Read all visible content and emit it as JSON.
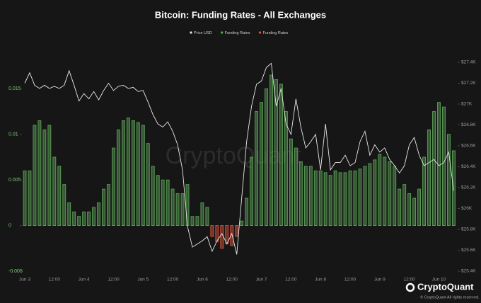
{
  "chart_data": {
    "type": "bar",
    "title": "Bitcoin: Funding Rates - All Exchanges",
    "watermark": "CryptoQuant",
    "categories": [
      "Jun 3",
      null,
      null,
      null,
      null,
      null,
      "12:00",
      null,
      null,
      null,
      null,
      null,
      "Jun 4",
      null,
      null,
      null,
      null,
      null,
      "12:00",
      null,
      null,
      null,
      null,
      null,
      "Jun 5",
      null,
      null,
      null,
      null,
      null,
      "12:00",
      null,
      null,
      null,
      null,
      null,
      "Jun 6",
      null,
      null,
      null,
      null,
      null,
      "12:00",
      null,
      null,
      null,
      null,
      null,
      "Jun 7",
      null,
      null,
      null,
      null,
      null,
      "12:00",
      null,
      null,
      null,
      null,
      null,
      "Jun 8",
      null,
      null,
      null,
      null,
      null,
      "12:00",
      null,
      null,
      null,
      null,
      null,
      "Jun 9",
      null,
      null,
      null,
      null,
      null,
      "12:00",
      null,
      null,
      null,
      null,
      null,
      "Jun 10",
      null,
      null,
      null
    ],
    "series": [
      {
        "name": "Price USD",
        "type": "line",
        "axis": "y2",
        "color": "#e8e8e8",
        "values": [
          27200,
          27300,
          27180,
          27150,
          27180,
          27150,
          27170,
          27150,
          27180,
          27320,
          27180,
          27030,
          27100,
          27050,
          27120,
          27040,
          27130,
          27200,
          27130,
          27170,
          27180,
          27150,
          27160,
          27120,
          27130,
          27020,
          26900,
          26810,
          26780,
          26830,
          26740,
          26610,
          26370,
          25830,
          25630,
          25660,
          25690,
          25730,
          25590,
          25690,
          25760,
          25660,
          25760,
          25560,
          26100,
          26640,
          26980,
          27190,
          27220,
          27350,
          27390,
          26980,
          27150,
          26810,
          26710,
          27050,
          26780,
          26580,
          26640,
          26710,
          26370,
          26810,
          26370,
          26440,
          26440,
          26510,
          26410,
          26440,
          26640,
          26740,
          26510,
          26610,
          26540,
          26580,
          26470,
          26410,
          26340,
          26410,
          26610,
          26680,
          26510,
          26410,
          26440,
          26470,
          26410,
          26440,
          26540,
          26170
        ]
      },
      {
        "name": "Funding Rates",
        "type": "bar",
        "color": "#5fa85a",
        "values": [
          0.006,
          0.006,
          0.011,
          0.0115,
          0.0105,
          0.011,
          0.0075,
          0.0065,
          0.0045,
          0.0025,
          0.0015,
          0.001,
          0.0015,
          0.0015,
          0.002,
          0.0025,
          0.004,
          0.0045,
          0.0085,
          0.0105,
          0.0115,
          0.0118,
          0.0115,
          0.0113,
          0.011,
          0.009,
          0.0065,
          0.0055,
          0.005,
          0.005,
          0.004,
          0.0035,
          0.0035,
          0.0045,
          0.001,
          0.001,
          0.0025,
          0.002,
          null,
          null,
          null,
          null,
          null,
          null,
          0.0005,
          0.003,
          0.0075,
          0.0125,
          0.0135,
          0.015,
          0.0165,
          0.016,
          0.0155,
          0.0125,
          0.0095,
          0.0085,
          0.007,
          0.0065,
          0.0065,
          0.006,
          0.006,
          0.0058,
          0.0055,
          0.006,
          0.0058,
          0.0058,
          0.006,
          0.006,
          0.0062,
          0.0065,
          0.0068,
          0.0072,
          0.0078,
          0.0075,
          0.007,
          0.0065,
          0.004,
          0.0045,
          0.0035,
          0.003,
          0.004,
          0.0075,
          0.0105,
          0.0125,
          0.0135,
          0.013,
          0.01,
          0.0082
        ]
      },
      {
        "name": "Funding Rates",
        "type": "bar",
        "color": "#e0563f",
        "values": [
          null,
          null,
          null,
          null,
          null,
          null,
          null,
          null,
          null,
          null,
          null,
          null,
          null,
          null,
          null,
          null,
          null,
          null,
          null,
          null,
          null,
          null,
          null,
          null,
          null,
          null,
          null,
          null,
          null,
          null,
          null,
          null,
          null,
          null,
          null,
          null,
          null,
          null,
          -0.0012,
          -0.0018,
          -0.0025,
          -0.002,
          -0.0022,
          -0.0012,
          null,
          null,
          null,
          null,
          null,
          null,
          null,
          null,
          null,
          null,
          null,
          null,
          null,
          null,
          null,
          null,
          null,
          null,
          null,
          null,
          null,
          null,
          null,
          null,
          null,
          null,
          null,
          null,
          null,
          null,
          null,
          null,
          null,
          null,
          null,
          null,
          null,
          null,
          null,
          null,
          null,
          null,
          null,
          null
        ]
      }
    ],
    "ylim": [
      -0.005,
      0.0179
    ],
    "yticks": [
      -0.005,
      0,
      0.005,
      0.01,
      0.015
    ],
    "y2lim": [
      25400,
      27400
    ],
    "y2ticks": [
      {
        "value": 25400,
        "label": "$25.4K"
      },
      {
        "value": 25600,
        "label": "$25.6K"
      },
      {
        "value": 25800,
        "label": "$25.8K"
      },
      {
        "value": 26000,
        "label": "$26K"
      },
      {
        "value": 26200,
        "label": "$26.2K"
      },
      {
        "value": 26400,
        "label": "$26.4K"
      },
      {
        "value": 26600,
        "label": "$26.6K"
      },
      {
        "value": 26800,
        "label": "$26.8K"
      },
      {
        "value": 27000,
        "label": "$27K"
      },
      {
        "value": 27200,
        "label": "$27.2K"
      },
      {
        "value": 27400,
        "label": "$27.4K"
      }
    ],
    "grid": false,
    "legend": "top"
  },
  "footer": {
    "brand": "CryptoQuant",
    "notice": "© CryptoQuant All rights reserved."
  }
}
